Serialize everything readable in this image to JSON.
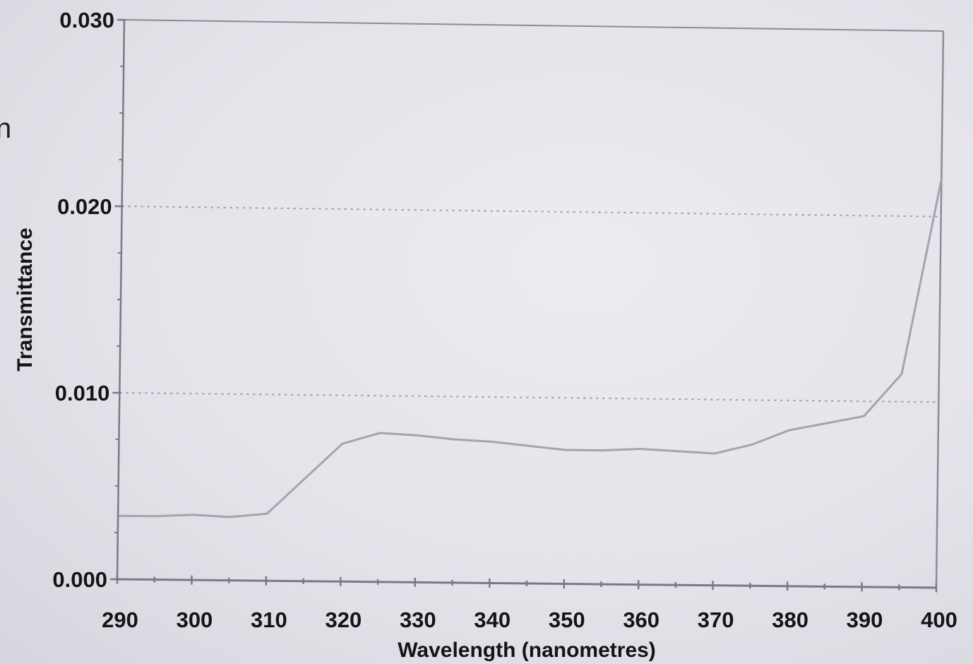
{
  "page": {
    "stray_glyph": "n"
  },
  "chart_data": {
    "type": "line",
    "title": "",
    "xlabel": "Wavelength (nanometres)",
    "ylabel": "Transmittance",
    "xlim": [
      290,
      400
    ],
    "ylim": [
      0.0,
      0.03
    ],
    "x_ticks": [
      290,
      300,
      310,
      320,
      330,
      340,
      350,
      360,
      370,
      380,
      390,
      400
    ],
    "x_tick_labels": [
      "290",
      "300",
      "310",
      "320",
      "330",
      "340",
      "350",
      "360",
      "370",
      "380",
      "390",
      "400"
    ],
    "y_ticks": [
      0.0,
      0.01,
      0.02,
      0.03
    ],
    "y_tick_labels": [
      "0.000",
      "0.010",
      "0.020",
      "0.030"
    ],
    "grid": "horizontal dotted at 0.010 and 0.020",
    "legend": "none",
    "series": [
      {
        "x": [
          290,
          295,
          300,
          305,
          310,
          315,
          320,
          325,
          330,
          335,
          340,
          345,
          350,
          355,
          360,
          365,
          370,
          375,
          380,
          385,
          390,
          395,
          400
        ],
        "y": [
          0.0034,
          0.0034,
          0.0035,
          0.0034,
          0.0036,
          0.0055,
          0.0074,
          0.008,
          0.0079,
          0.0077,
          0.0076,
          0.0074,
          0.0072,
          0.0072,
          0.0073,
          0.0072,
          0.0071,
          0.0076,
          0.0084,
          0.0088,
          0.0092,
          0.0115,
          0.022
        ]
      }
    ],
    "colors": {
      "line": "#a4a4ac",
      "frame": "#8c8c98",
      "grid": "#9a9aac",
      "axis": "#7a7a86"
    }
  }
}
